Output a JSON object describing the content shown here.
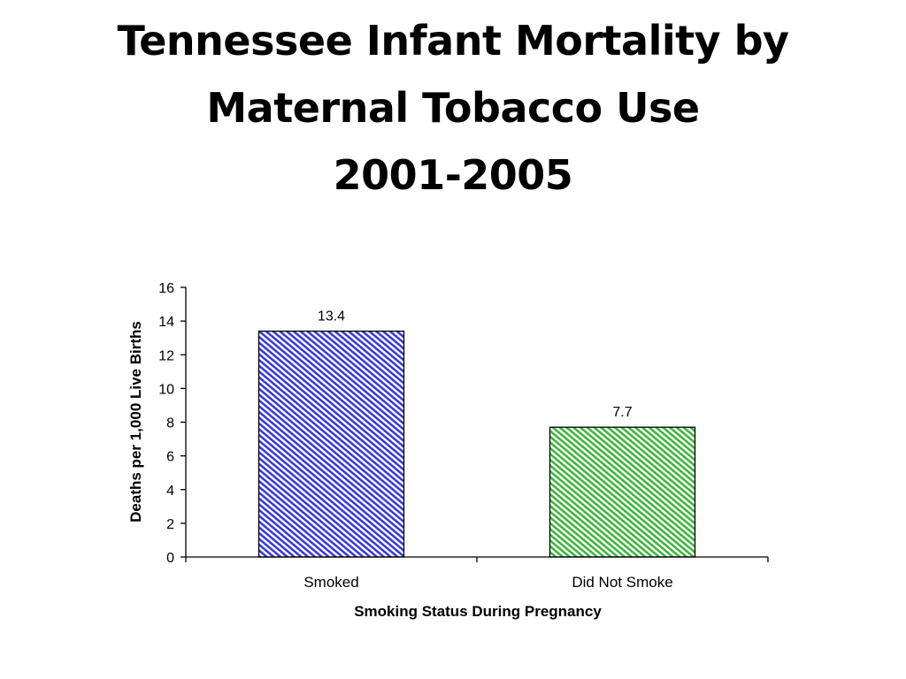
{
  "title_lines": [
    "Tennessee Infant Mortality by",
    "Maternal Tobacco Use",
    "2001-2005"
  ],
  "colors": {
    "smoked_bar": "#3b3bd0",
    "did_not_smoke_bar": "#3fb43f",
    "axis": "#000000"
  },
  "chart_data": {
    "type": "bar",
    "title": "Tennessee Infant Mortality by Maternal Tobacco Use 2001-2005",
    "categories": [
      "Smoked",
      "Did Not Smoke"
    ],
    "values": [
      13.4,
      7.7
    ],
    "data_labels": [
      "13.4",
      "7.7"
    ],
    "xlabel": "Smoking Status During Pregnancy",
    "ylabel": "Deaths per 1,000 Live Births",
    "ylim": [
      0,
      16
    ],
    "yticks": [
      0,
      2,
      4,
      6,
      8,
      10,
      12,
      14,
      16
    ],
    "grid": false,
    "legend": "none",
    "bar_fill": "diagonal hatch"
  }
}
